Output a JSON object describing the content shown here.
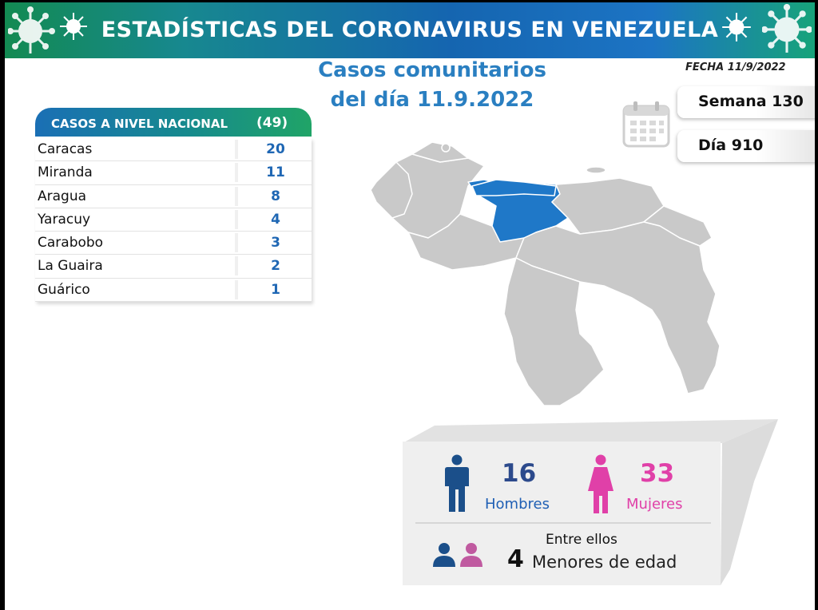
{
  "header": {
    "title": "ESTADÍSTICAS DEL CORONAVIRUS EN VENEZUELA"
  },
  "subtitle": {
    "line1": "Casos comunitarios",
    "line2": "del día 11.9.2022"
  },
  "fecha": "FECHA 11/9/2022",
  "semana": "Semana 130",
  "dia": "Día 910",
  "table": {
    "heading": "CASOS A NIVEL NACIONAL",
    "total": "(49)",
    "rows": [
      {
        "name": "Caracas",
        "value": "20"
      },
      {
        "name": "Miranda",
        "value": "11"
      },
      {
        "name": "Aragua",
        "value": "8"
      },
      {
        "name": "Yaracuy",
        "value": "4"
      },
      {
        "name": "Carabobo",
        "value": "3"
      },
      {
        "name": "La Guaira",
        "value": "2"
      },
      {
        "name": "Guárico",
        "value": "1"
      }
    ]
  },
  "gender": {
    "men_count": "16",
    "men_label": "Hombres",
    "women_count": "33",
    "women_label": "Mujeres",
    "among": "Entre ellos",
    "minors_count": "4",
    "minors_label": "Menores de edad"
  },
  "colors": {
    "men": "#1b4f8a",
    "women": "#e040a8",
    "highlight": "#1f78c8",
    "map_gray": "#c9c9c9"
  },
  "icons": [
    "virus-icon",
    "calendar-icon",
    "man-icon",
    "woman-icon",
    "child-icon"
  ]
}
